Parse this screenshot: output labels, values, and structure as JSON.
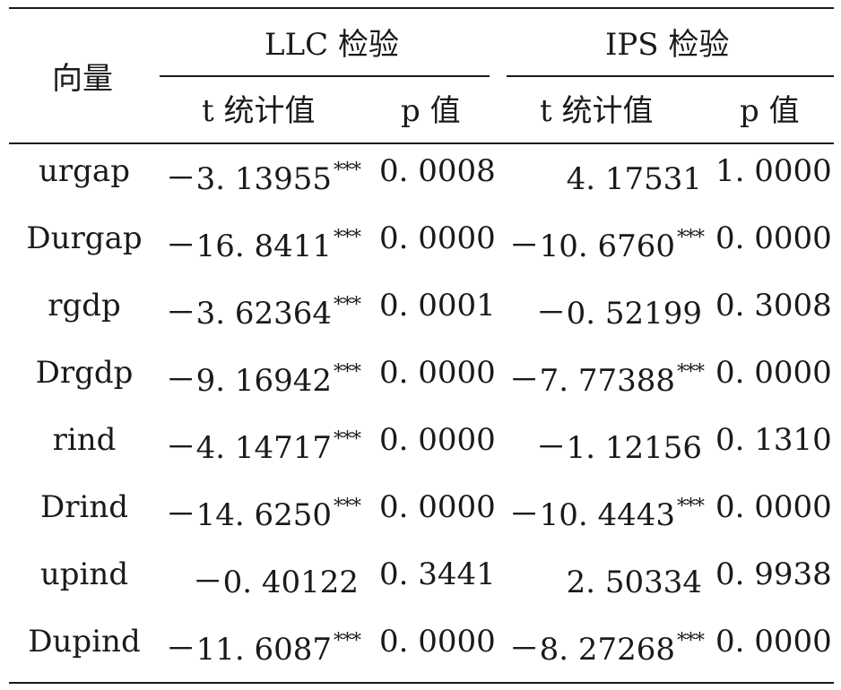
{
  "header": {
    "variable": "向量",
    "llc_group": "LLC 检验",
    "ips_group": "IPS 检验",
    "t_stat": "t 统计值",
    "p_value": "p 值"
  },
  "rows": [
    {
      "var": "urgap",
      "llc_t": "－3. 13955",
      "llc_s": "***",
      "llc_p": "0. 0008",
      "ips_t": "4. 17531",
      "ips_s": "",
      "ips_p": "1. 0000"
    },
    {
      "var": "Durgap",
      "llc_t": "－16. 8411",
      "llc_s": "***",
      "llc_p": "0. 0000",
      "ips_t": "－10. 6760",
      "ips_s": "***",
      "ips_p": "0. 0000"
    },
    {
      "var": "rgdp",
      "llc_t": "－3. 62364",
      "llc_s": "***",
      "llc_p": "0. 0001",
      "ips_t": "－0. 52199",
      "ips_s": "",
      "ips_p": "0. 3008"
    },
    {
      "var": "Drgdp",
      "llc_t": "－9. 16942",
      "llc_s": "***",
      "llc_p": "0. 0000",
      "ips_t": "－7. 77388",
      "ips_s": "***",
      "ips_p": "0. 0000"
    },
    {
      "var": "rind",
      "llc_t": "－4. 14717",
      "llc_s": "***",
      "llc_p": "0. 0000",
      "ips_t": "－1. 12156",
      "ips_s": "",
      "ips_p": "0. 1310"
    },
    {
      "var": "Drind",
      "llc_t": "－14. 6250",
      "llc_s": "***",
      "llc_p": "0. 0000",
      "ips_t": "－10. 4443",
      "ips_s": "***",
      "ips_p": "0. 0000"
    },
    {
      "var": "upind",
      "llc_t": "－0. 40122",
      "llc_s": "",
      "llc_p": "0. 3441",
      "ips_t": "2. 50334",
      "ips_s": "",
      "ips_p": "0. 9938"
    },
    {
      "var": "Dupind",
      "llc_t": "－11. 6087",
      "llc_s": "***",
      "llc_p": "0. 0000",
      "ips_t": "－8. 27268",
      "ips_s": "***",
      "ips_p": "0. 0000"
    }
  ]
}
